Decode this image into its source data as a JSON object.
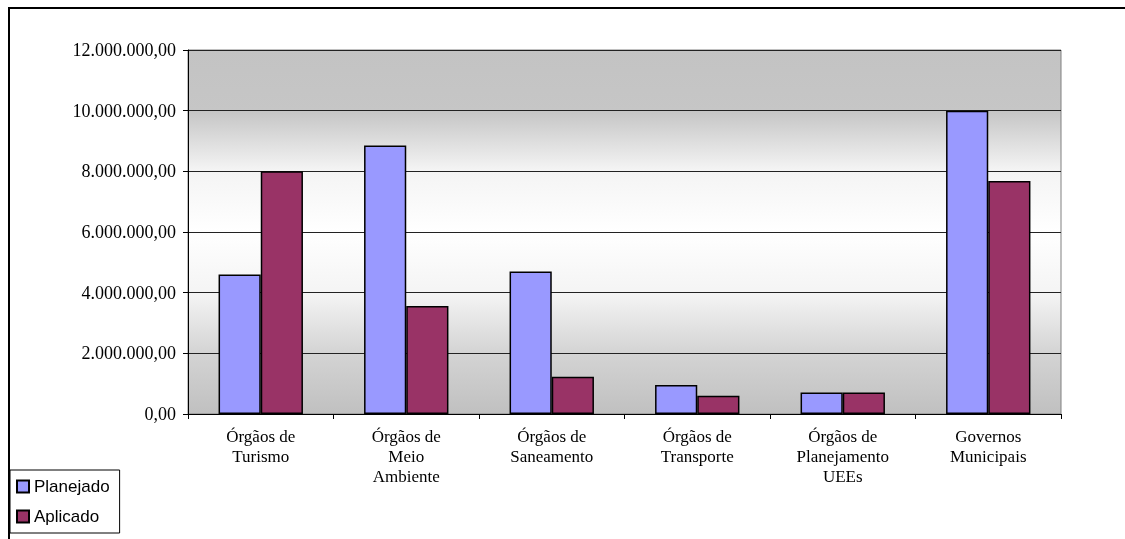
{
  "chart_data": {
    "type": "bar",
    "categories": [
      "Órgãos de\nTurismo",
      "Órgãos de\nMeio\nAmbiente",
      "Órgãos de\nSaneamento",
      "Órgãos de\nTransporte",
      "Órgãos de\nPlanejamento\nUEEs",
      "Governos\nMunicipais"
    ],
    "series": [
      {
        "name": "Planejado",
        "color": "#9999ff",
        "values": [
          4600000,
          8850000,
          4700000,
          960000,
          710000,
          10000000
        ]
      },
      {
        "name": "Aplicado",
        "color": "#993366",
        "values": [
          8000000,
          3560000,
          1230000,
          600000,
          710000,
          7680000
        ]
      }
    ],
    "ylim": [
      0,
      12000000
    ],
    "yticks": [
      {
        "value": 0,
        "label": "0,00"
      },
      {
        "value": 2000000,
        "label": "2.000.000,00"
      },
      {
        "value": 4000000,
        "label": "4.000.000,00"
      },
      {
        "value": 6000000,
        "label": "6.000.000,00"
      },
      {
        "value": 8000000,
        "label": "8.000.000,00"
      },
      {
        "value": 10000000,
        "label": "10.000.000,00"
      },
      {
        "value": 12000000,
        "label": "12.000.000,00"
      }
    ],
    "grid": "y",
    "legend": "bottom left"
  }
}
